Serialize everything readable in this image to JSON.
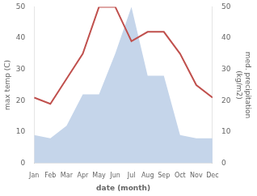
{
  "chart_data": {
    "type": "line",
    "xlabel": "date (month)",
    "ylabel": "max temp (C)",
    "y2label": "med. precipitation\n(kg/m2)",
    "categories": [
      "Jan",
      "Feb",
      "Mar",
      "Apr",
      "May",
      "Jun",
      "Jul",
      "Aug",
      "Sep",
      "Oct",
      "Nov",
      "Dec"
    ],
    "series": [
      {
        "type": "line",
        "color": "#c0504d",
        "values": [
          21,
          19,
          27,
          35,
          50,
          50,
          39,
          42,
          42,
          35,
          25,
          21
        ]
      },
      {
        "type": "area",
        "color": "#c5d5ea",
        "axis": "y2",
        "values": [
          9,
          8,
          12,
          22,
          22,
          35,
          50,
          28,
          28,
          9,
          8,
          8
        ]
      }
    ],
    "ylim": [
      0,
      50
    ],
    "yticks": [
      0,
      10,
      20,
      30,
      40,
      50
    ],
    "y2lim": [
      0,
      50
    ],
    "y2ticks": [
      0,
      10,
      20,
      30,
      40,
      50
    ],
    "grid": false
  }
}
